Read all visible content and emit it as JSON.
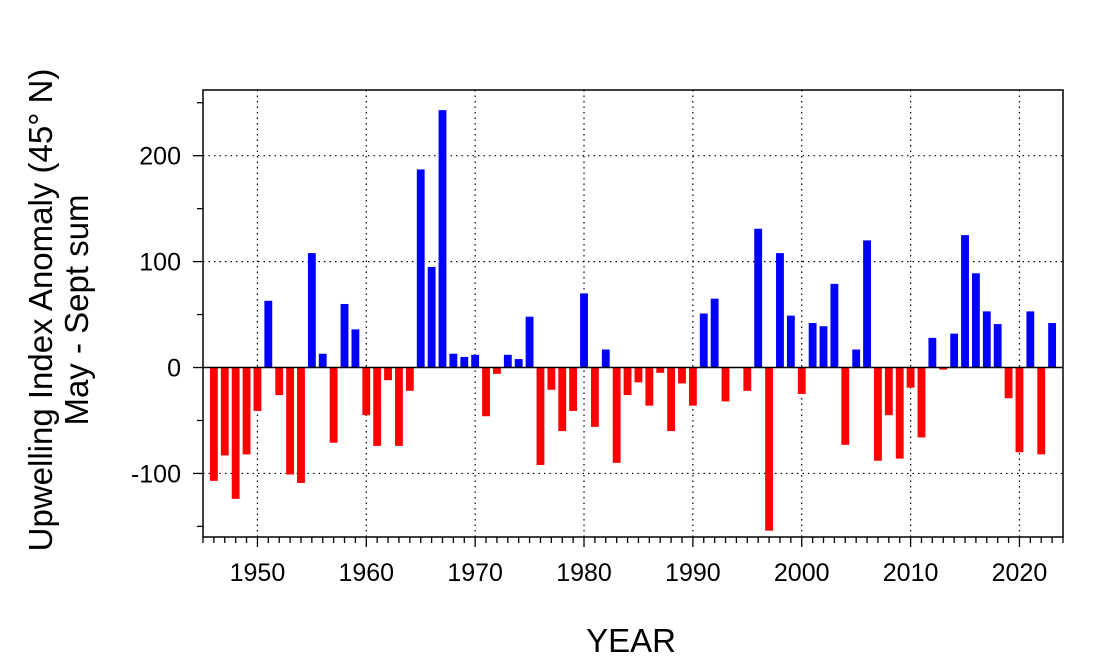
{
  "chart_data": {
    "type": "bar",
    "xlabel": "YEAR",
    "ylabel": [
      "Upwelling Index Anomaly (45° N)",
      "May - Sept sum"
    ],
    "xlim": [
      1945,
      2024
    ],
    "ylim": [
      -160,
      262
    ],
    "x_ticks": [
      1950,
      1960,
      1970,
      1980,
      1990,
      2000,
      2010,
      2020
    ],
    "x_tick_labels": [
      "1950",
      "1960",
      "1970",
      "1980",
      "1990",
      "2000",
      "2010",
      "2020"
    ],
    "y_ticks": [
      -100,
      0,
      100,
      200
    ],
    "y_tick_labels": [
      "-100",
      "0",
      "100",
      "200"
    ],
    "grid": true,
    "colors": {
      "positive": "#0000ff",
      "negative": "#ff0000"
    },
    "series": [
      {
        "x": [
          1946,
          1947,
          1948,
          1949,
          1950,
          1951,
          1952,
          1953,
          1954,
          1955,
          1956,
          1957,
          1958,
          1959,
          1960,
          1961,
          1962,
          1963,
          1964,
          1965,
          1966,
          1967,
          1968,
          1969,
          1970,
          1971,
          1972,
          1973,
          1974,
          1975,
          1976,
          1977,
          1978,
          1979,
          1980,
          1981,
          1982,
          1983,
          1984,
          1985,
          1986,
          1987,
          1988,
          1989,
          1990,
          1991,
          1992,
          1993,
          1994,
          1995,
          1996,
          1997,
          1998,
          1999,
          2000,
          2001,
          2002,
          2003,
          2004,
          2005,
          2006,
          2007,
          2008,
          2009,
          2010,
          2011,
          2012,
          2013,
          2014,
          2015,
          2016,
          2017,
          2018,
          2019,
          2020,
          2021,
          2022,
          2023
        ],
        "values": [
          -107,
          -83,
          -124,
          -82,
          -41,
          63,
          -26,
          -101,
          -109,
          108,
          13,
          -71,
          60,
          36,
          -45,
          -74,
          -12,
          -74,
          -22,
          187,
          95,
          243,
          13,
          10,
          12,
          -46,
          -6,
          12,
          8,
          48,
          -92,
          -21,
          -60,
          -41,
          70,
          -56,
          17,
          -90,
          -26,
          -14,
          -36,
          -5,
          -60,
          -15,
          -36,
          51,
          65,
          -32,
          0,
          -22,
          131,
          -154,
          108,
          49,
          -25,
          42,
          39,
          79,
          -73,
          17,
          120,
          -88,
          -45,
          -86,
          -19,
          -66,
          28,
          -2,
          32,
          125,
          89,
          53,
          41,
          -29,
          -80,
          53,
          -82,
          42
        ]
      }
    ]
  }
}
